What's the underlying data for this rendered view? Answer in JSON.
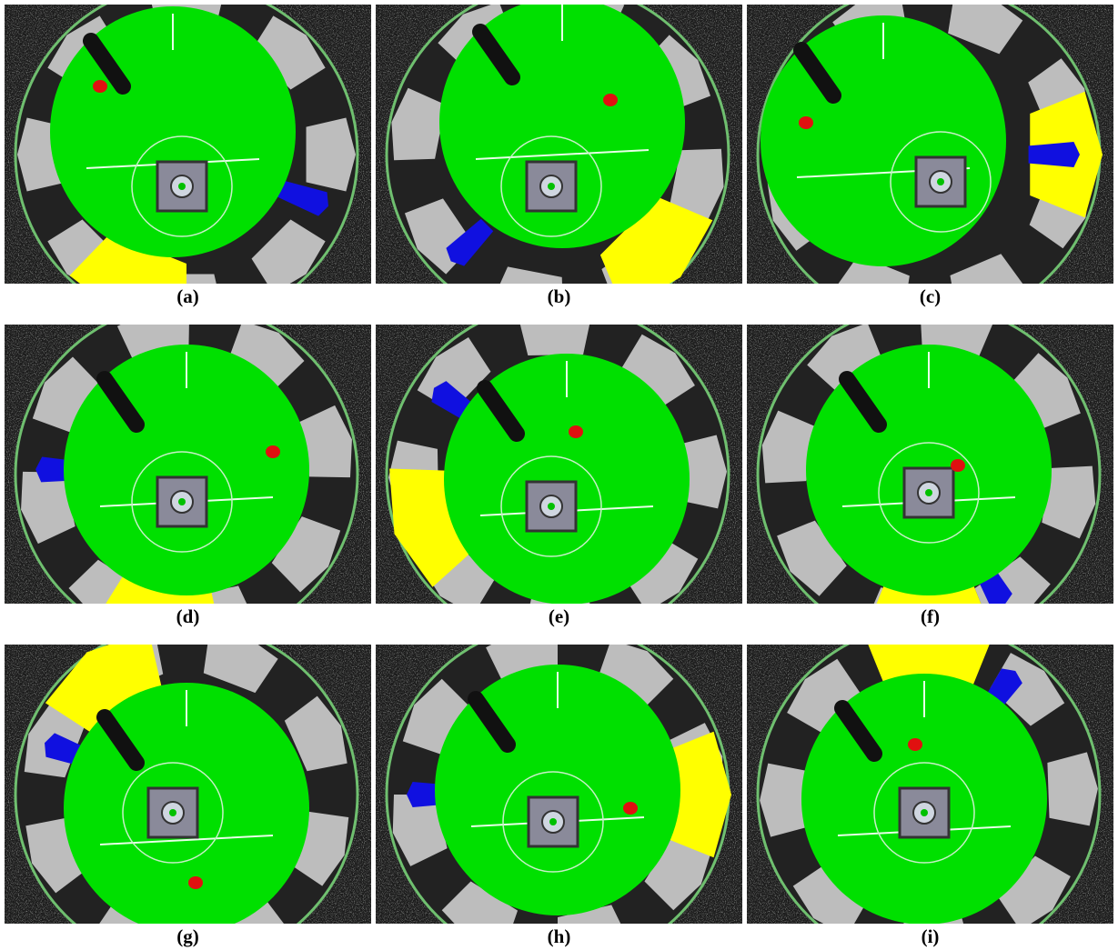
{
  "figure": {
    "panels": [
      {
        "caption": "(a)"
      },
      {
        "caption": "(b)"
      },
      {
        "caption": "(c)"
      },
      {
        "caption": "(d)"
      },
      {
        "caption": "(e)"
      },
      {
        "caption": "(f)"
      },
      {
        "caption": "(g)"
      },
      {
        "caption": "(h)"
      },
      {
        "caption": "(i)"
      }
    ]
  }
}
